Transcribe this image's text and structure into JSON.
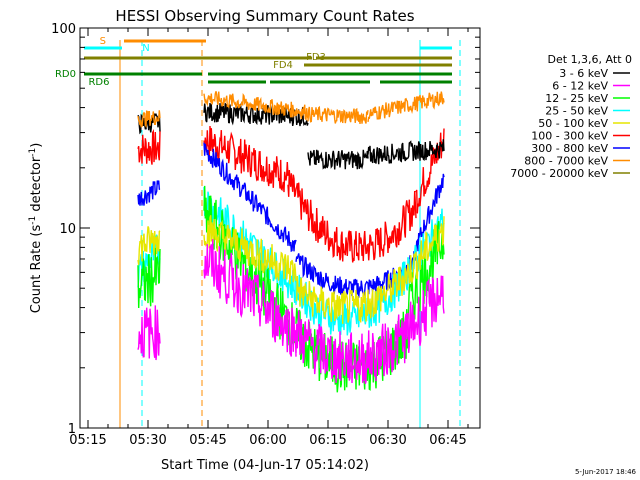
{
  "chart_data": {
    "type": "line",
    "title": "HESSI Observing Summary Count Rates",
    "xlabel": "Start Time (04-Jun-17 05:14:02)",
    "ylabel_main": "Count Rate (s",
    "ylabel_sup1": "-1",
    "ylabel_mid": " detector",
    "ylabel_sup2": "-1",
    "ylabel_end": ")",
    "y_scale": "log",
    "ylim": [
      1,
      100
    ],
    "xlim_minutes": [
      -2,
      98
    ],
    "xticks": [
      {
        "m": 0,
        "label": "05:15"
      },
      {
        "m": 15,
        "label": "05:30"
      },
      {
        "m": 30,
        "label": "05:45"
      },
      {
        "m": 45,
        "label": "06:00"
      },
      {
        "m": 60,
        "label": "06:15"
      },
      {
        "m": 75,
        "label": "06:30"
      },
      {
        "m": 90,
        "label": "06:45"
      }
    ],
    "yticks": [
      {
        "v": 1,
        "label": "1"
      },
      {
        "v": 10,
        "label": "10"
      },
      {
        "v": 100,
        "label": "100"
      }
    ],
    "legend_header": "Det 1,3,6, Att 0",
    "legend_placement": "right",
    "series": [
      {
        "name": "3 - 6 keV",
        "color": "#000000"
      },
      {
        "name": "6 - 12 keV",
        "color": "#ff00ff"
      },
      {
        "name": "12 - 25 keV",
        "color": "#00ff00"
      },
      {
        "name": "25 - 50 keV",
        "color": "#00ffff"
      },
      {
        "name": "50 - 100 keV",
        "color": "#e6e600"
      },
      {
        "name": "100 - 300 keV",
        "color": "#ff0000"
      },
      {
        "name": "300 - 800 keV",
        "color": "#0000ff"
      },
      {
        "name": "800 - 7000 keV",
        "color": "#ff8c00"
      },
      {
        "name": "7000 - 20000 keV",
        "color": "#808000"
      }
    ],
    "flag_bars": [
      {
        "label": "S",
        "color": "#ff8c00",
        "segments": [
          [
            9,
            29.5
          ]
        ]
      },
      {
        "label": "N",
        "color": "#00ffff",
        "segments": [
          [
            -1,
            8.5
          ],
          [
            83,
            91
          ]
        ]
      },
      {
        "label": "FD3",
        "color": "#808000",
        "segments": [
          [
            -1,
            56
          ],
          [
            57,
            91
          ]
        ]
      },
      {
        "label": "FD4",
        "color": "#808000",
        "segments": [
          [
            54,
            91
          ]
        ]
      },
      {
        "label": "RD0",
        "color": "#008000",
        "segments": [
          [
            -1,
            28.5
          ],
          [
            30,
            91
          ]
        ]
      },
      {
        "label": "RD6",
        "color": "#008000",
        "segments": [
          [
            30,
            44.5
          ],
          [
            45.5,
            70.5
          ],
          [
            73,
            91
          ]
        ]
      }
    ],
    "vertical_markers": [
      {
        "m": 8,
        "color": "#ff8c00",
        "style": "solid"
      },
      {
        "m": 13.5,
        "color": "#00ffff",
        "style": "dashed"
      },
      {
        "m": 28.5,
        "color": "#ff8c00",
        "style": "dashed"
      },
      {
        "m": 83,
        "color": "#00ffff",
        "style": "solid"
      },
      {
        "m": 93,
        "color": "#00ffff",
        "style": "dashed"
      }
    ]
  },
  "footer_timestamp": "5-Jun-2017 18:46"
}
